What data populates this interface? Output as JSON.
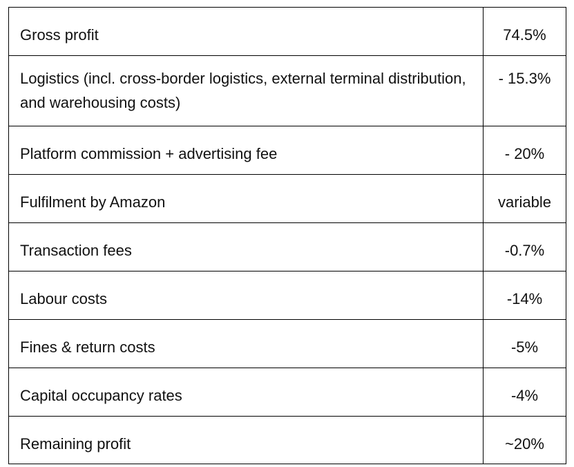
{
  "table": {
    "rows": [
      {
        "label": "Gross profit",
        "value": "74.5%"
      },
      {
        "label": "Logistics (incl. cross-border logistics, external terminal distribution, and warehousing costs)",
        "value": "- 15.3%"
      },
      {
        "label": "Platform commission + advertising fee",
        "value": "- 20%"
      },
      {
        "label": "Fulfilment by Amazon",
        "value": "variable"
      },
      {
        "label": "Transaction fees",
        "value": "-0.7%"
      },
      {
        "label": "Labour costs",
        "value": "-14%"
      },
      {
        "label": "Fines & return costs",
        "value": "-5%"
      },
      {
        "label": "Capital occupancy rates",
        "value": "-4%"
      },
      {
        "label": "Remaining profit",
        "value": "~20%"
      }
    ]
  }
}
